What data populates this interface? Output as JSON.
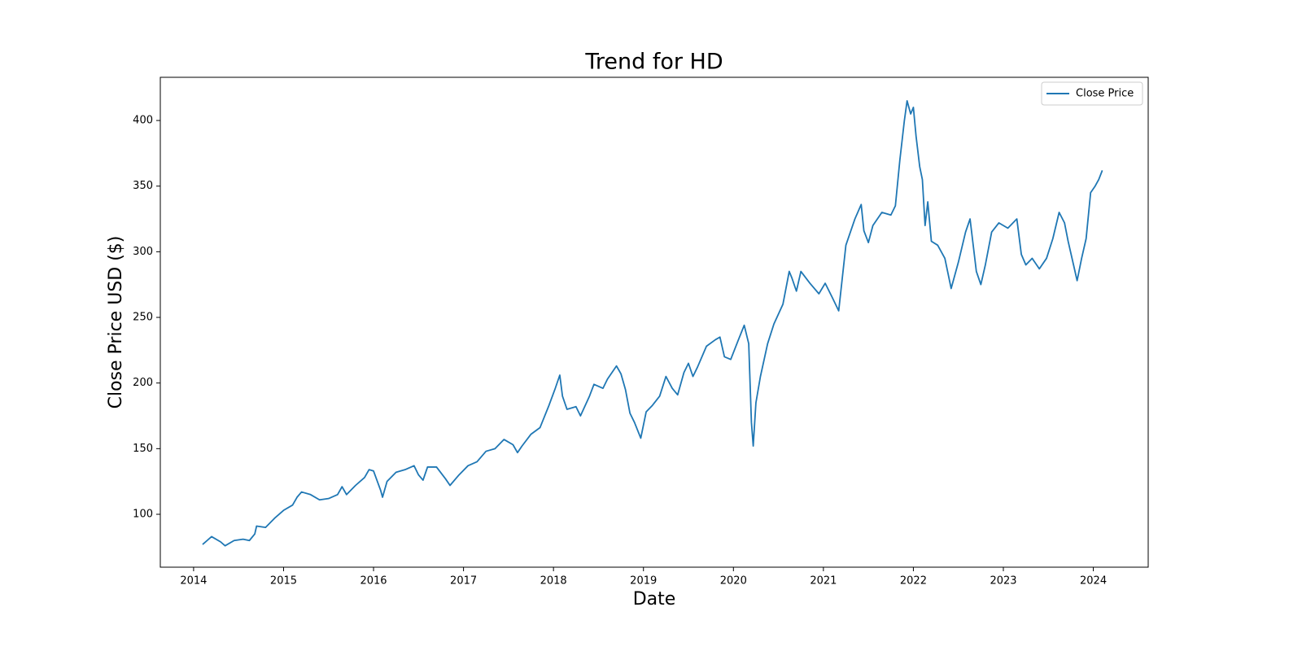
{
  "chart_data": {
    "type": "line",
    "title": "Trend for HD",
    "x_label": "Date",
    "y_label": "Close Price USD ($)",
    "x": [
      2014.1,
      2014.15,
      2014.2,
      2014.3,
      2014.35,
      2014.45,
      2014.55,
      2014.62,
      2014.68,
      2014.7,
      2014.8,
      2014.9,
      2015.0,
      2015.1,
      2015.15,
      2015.2,
      2015.3,
      2015.4,
      2015.5,
      2015.6,
      2015.65,
      2015.7,
      2015.8,
      2015.9,
      2015.95,
      2016.0,
      2016.08,
      2016.1,
      2016.15,
      2016.25,
      2016.35,
      2016.45,
      2016.5,
      2016.55,
      2016.6,
      2016.7,
      2016.8,
      2016.85,
      2016.95,
      2017.05,
      2017.15,
      2017.25,
      2017.35,
      2017.45,
      2017.55,
      2017.6,
      2017.65,
      2017.75,
      2017.85,
      2017.95,
      2018.02,
      2018.07,
      2018.1,
      2018.15,
      2018.25,
      2018.3,
      2018.4,
      2018.45,
      2018.55,
      2018.6,
      2018.7,
      2018.75,
      2018.8,
      2018.85,
      2018.9,
      2018.97,
      2019.03,
      2019.1,
      2019.18,
      2019.25,
      2019.32,
      2019.38,
      2019.45,
      2019.5,
      2019.55,
      2019.6,
      2019.7,
      2019.8,
      2019.85,
      2019.9,
      2019.97,
      2020.05,
      2020.12,
      2020.17,
      2020.2,
      2020.22,
      2020.25,
      2020.3,
      2020.38,
      2020.45,
      2020.55,
      2020.62,
      2020.65,
      2020.7,
      2020.75,
      2020.85,
      2020.95,
      2021.02,
      2021.1,
      2021.17,
      2021.25,
      2021.35,
      2021.42,
      2021.45,
      2021.5,
      2021.55,
      2021.65,
      2021.75,
      2021.8,
      2021.85,
      2021.9,
      2021.93,
      2021.97,
      2022.0,
      2022.03,
      2022.07,
      2022.1,
      2022.13,
      2022.16,
      2022.2,
      2022.27,
      2022.35,
      2022.42,
      2022.5,
      2022.58,
      2022.63,
      2022.7,
      2022.75,
      2022.8,
      2022.87,
      2022.95,
      2023.05,
      2023.15,
      2023.2,
      2023.25,
      2023.32,
      2023.4,
      2023.48,
      2023.55,
      2023.62,
      2023.68,
      2023.72,
      2023.78,
      2023.82,
      2023.87,
      2023.92,
      2023.97,
      2024.02,
      2024.06,
      2024.1
    ],
    "series": [
      {
        "name": "Close Price",
        "color": "#1f77b4",
        "values": [
          77,
          80,
          83,
          79,
          76,
          80,
          81,
          80,
          85,
          91,
          90,
          97,
          103,
          107,
          113,
          117,
          115,
          111,
          112,
          115,
          121,
          115,
          122,
          128,
          134,
          133,
          118,
          113,
          125,
          132,
          134,
          137,
          130,
          126,
          136,
          136,
          127,
          122,
          130,
          137,
          140,
          148,
          150,
          157,
          153,
          147,
          152,
          161,
          166,
          183,
          196,
          206,
          190,
          180,
          182,
          175,
          190,
          199,
          196,
          203,
          213,
          207,
          195,
          177,
          170,
          158,
          178,
          183,
          190,
          205,
          196,
          191,
          208,
          215,
          205,
          212,
          228,
          233,
          235,
          220,
          218,
          232,
          244,
          230,
          170,
          152,
          185,
          205,
          230,
          245,
          260,
          285,
          280,
          270,
          285,
          276,
          268,
          276,
          265,
          255,
          305,
          325,
          336,
          316,
          307,
          320,
          330,
          328,
          335,
          370,
          400,
          415,
          405,
          410,
          388,
          365,
          355,
          320,
          338,
          308,
          305,
          295,
          272,
          292,
          315,
          325,
          285,
          275,
          290,
          315,
          322,
          318,
          325,
          298,
          290,
          295,
          287,
          295,
          310,
          330,
          322,
          308,
          290,
          278,
          295,
          310,
          345,
          350,
          355,
          362
        ]
      }
    ],
    "xlim": [
      2013.63,
      2024.61
    ],
    "ylim": [
      59.7,
      432.9
    ],
    "xticks": [
      2014,
      2015,
      2016,
      2017,
      2018,
      2019,
      2020,
      2021,
      2022,
      2023,
      2024
    ],
    "yticks": [
      100,
      150,
      200,
      250,
      300,
      350,
      400
    ],
    "legend": "upper right"
  }
}
